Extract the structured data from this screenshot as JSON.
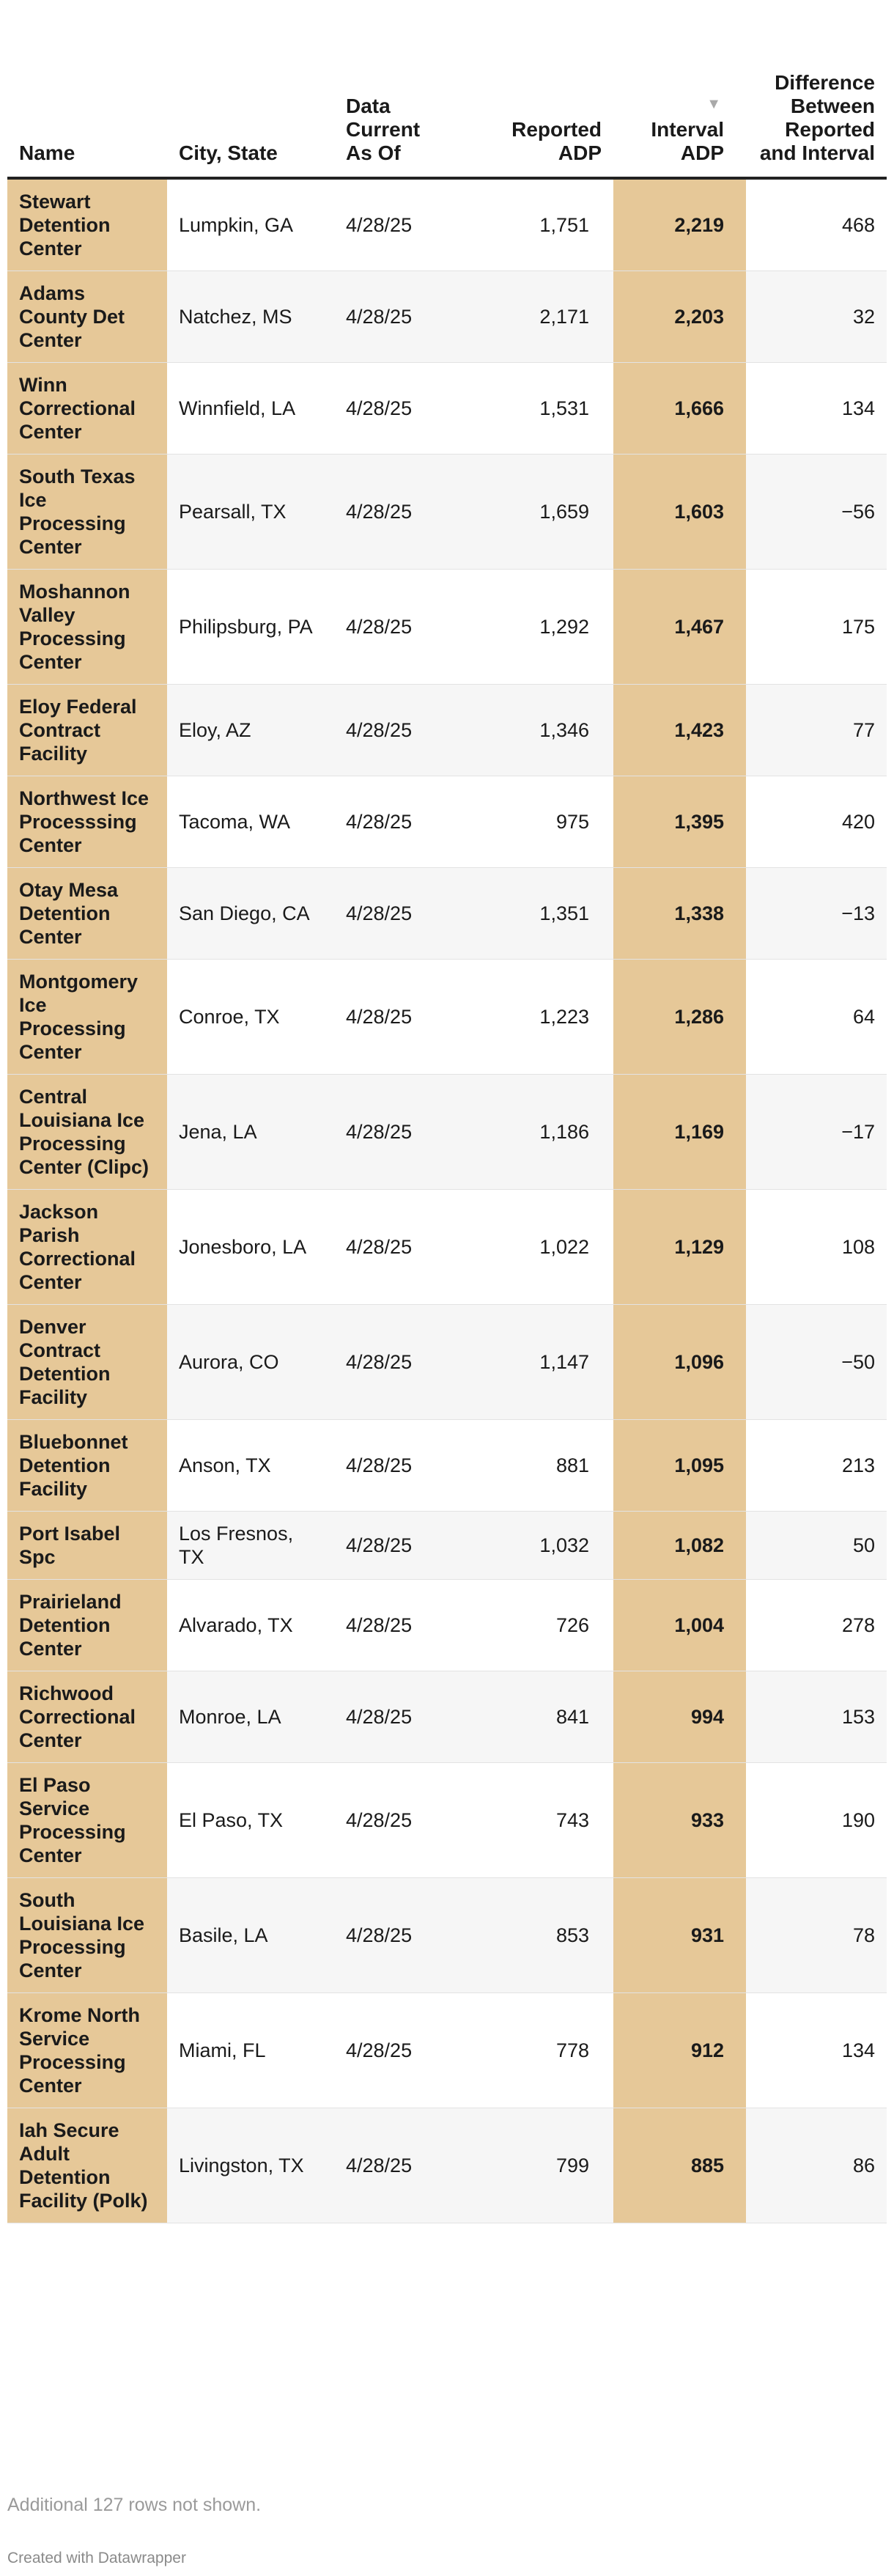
{
  "table": {
    "headers": {
      "name": "Name",
      "city": "City, State",
      "date": "Data Current As Of",
      "reported": "Reported ADP",
      "interval": "Interval ADP",
      "difference": "Difference Between Reported and Interval"
    },
    "sort": {
      "column": "interval",
      "direction": "descending",
      "indicator": "▼"
    },
    "rows": [
      {
        "name": "Stewart Detention Center",
        "city": "Lumpkin, GA",
        "date": "4/28/25",
        "reported": "1,751",
        "interval": "2,219",
        "difference": "468"
      },
      {
        "name": "Adams County Det Center",
        "city": "Natchez, MS",
        "date": "4/28/25",
        "reported": "2,171",
        "interval": "2,203",
        "difference": "32"
      },
      {
        "name": "Winn Correctional Center",
        "city": "Winnfield, LA",
        "date": "4/28/25",
        "reported": "1,531",
        "interval": "1,666",
        "difference": "134"
      },
      {
        "name": "South Texas Ice Processing Center",
        "city": "Pearsall, TX",
        "date": "4/28/25",
        "reported": "1,659",
        "interval": "1,603",
        "difference": "−56"
      },
      {
        "name": "Moshannon Valley Processing Center",
        "city": "Philipsburg, PA",
        "date": "4/28/25",
        "reported": "1,292",
        "interval": "1,467",
        "difference": "175"
      },
      {
        "name": "Eloy Federal Contract Facility",
        "city": "Eloy, AZ",
        "date": "4/28/25",
        "reported": "1,346",
        "interval": "1,423",
        "difference": "77"
      },
      {
        "name": "Northwest Ice Processsing Center",
        "city": "Tacoma, WA",
        "date": "4/28/25",
        "reported": "975",
        "interval": "1,395",
        "difference": "420"
      },
      {
        "name": "Otay Mesa Detention Center",
        "city": "San Diego, CA",
        "date": "4/28/25",
        "reported": "1,351",
        "interval": "1,338",
        "difference": "−13"
      },
      {
        "name": "Montgomery Ice Processing Center",
        "city": "Conroe, TX",
        "date": "4/28/25",
        "reported": "1,223",
        "interval": "1,286",
        "difference": "64"
      },
      {
        "name": "Central Louisiana Ice Processing Center (Clipc)",
        "city": "Jena, LA",
        "date": "4/28/25",
        "reported": "1,186",
        "interval": "1,169",
        "difference": "−17"
      },
      {
        "name": "Jackson Parish Correctional Center",
        "city": "Jonesboro, LA",
        "date": "4/28/25",
        "reported": "1,022",
        "interval": "1,129",
        "difference": "108"
      },
      {
        "name": "Denver Contract Detention Facility",
        "city": "Aurora, CO",
        "date": "4/28/25",
        "reported": "1,147",
        "interval": "1,096",
        "difference": "−50"
      },
      {
        "name": "Bluebonnet Detention Facility",
        "city": "Anson, TX",
        "date": "4/28/25",
        "reported": "881",
        "interval": "1,095",
        "difference": "213"
      },
      {
        "name": "Port Isabel Spc",
        "city": "Los Fresnos, TX",
        "date": "4/28/25",
        "reported": "1,032",
        "interval": "1,082",
        "difference": "50"
      },
      {
        "name": "Prairieland Detention Center",
        "city": "Alvarado, TX",
        "date": "4/28/25",
        "reported": "726",
        "interval": "1,004",
        "difference": "278"
      },
      {
        "name": "Richwood Correctional Center",
        "city": "Monroe, LA",
        "date": "4/28/25",
        "reported": "841",
        "interval": "994",
        "difference": "153"
      },
      {
        "name": "El Paso Service Processing Center",
        "city": "El Paso, TX",
        "date": "4/28/25",
        "reported": "743",
        "interval": "933",
        "difference": "190"
      },
      {
        "name": "South Louisiana Ice Processing Center",
        "city": "Basile, LA",
        "date": "4/28/25",
        "reported": "853",
        "interval": "931",
        "difference": "78"
      },
      {
        "name": "Krome North Service Processing Center",
        "city": "Miami, FL",
        "date": "4/28/25",
        "reported": "778",
        "interval": "912",
        "difference": "134"
      },
      {
        "name": "Iah Secure Adult Detention Facility (Polk)",
        "city": "Livingston, TX",
        "date": "4/28/25",
        "reported": "799",
        "interval": "885",
        "difference": "86"
      }
    ]
  },
  "notes": "Additional 127 rows not shown.",
  "credit": "Created with Datawrapper",
  "colors": {
    "highlight_column": "#e6c898",
    "stripe": "#f6f6f6",
    "header_rule": "#222222"
  }
}
